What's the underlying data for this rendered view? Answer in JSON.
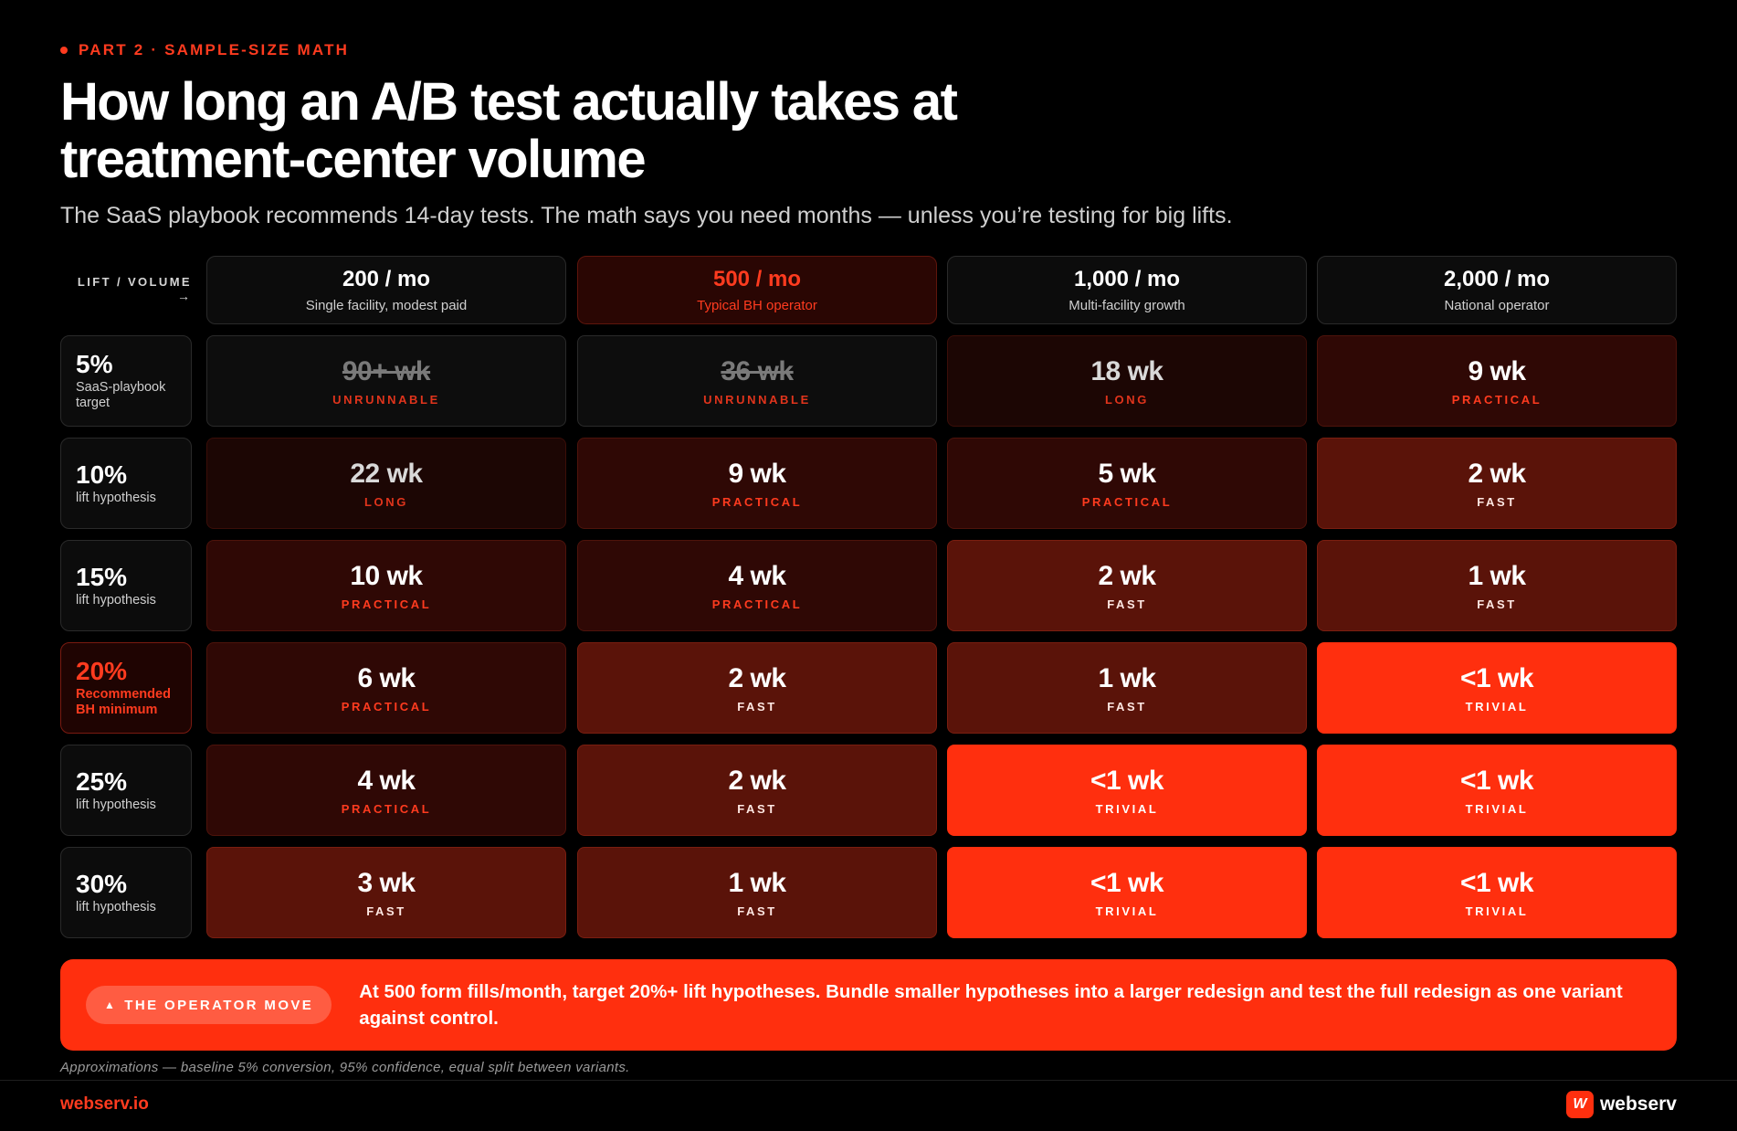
{
  "eyebrow": "PART 2 · SAMPLE-SIZE MATH",
  "title": "How long an A/B test actually takes at treatment-center volume",
  "subtitle": "The SaaS playbook recommends 14-day tests. The math says you need months — unless you’re testing for big lifts.",
  "corner_label": "LIFT / VOLUME",
  "corner_arrow": "→",
  "chart_data": {
    "type": "table",
    "columns": [
      {
        "volume": "200 / mo",
        "desc": "Single facility, modest paid",
        "highlight": false
      },
      {
        "volume": "500 / mo",
        "desc": "Typical BH operator",
        "highlight": true
      },
      {
        "volume": "1,000 / mo",
        "desc": "Multi-facility growth",
        "highlight": false
      },
      {
        "volume": "2,000 / mo",
        "desc": "National operator",
        "highlight": false
      }
    ],
    "rows": [
      {
        "lift": "5%",
        "desc": "SaaS-playbook target",
        "highlight": false,
        "cells": [
          {
            "value": "90+ wk",
            "label": "UNRUNNABLE"
          },
          {
            "value": "36 wk",
            "label": "UNRUNNABLE"
          },
          {
            "value": "18 wk",
            "label": "LONG"
          },
          {
            "value": "9 wk",
            "label": "PRACTICAL"
          }
        ]
      },
      {
        "lift": "10%",
        "desc": "lift hypothesis",
        "highlight": false,
        "cells": [
          {
            "value": "22 wk",
            "label": "LONG"
          },
          {
            "value": "9 wk",
            "label": "PRACTICAL"
          },
          {
            "value": "5 wk",
            "label": "PRACTICAL"
          },
          {
            "value": "2 wk",
            "label": "FAST"
          }
        ]
      },
      {
        "lift": "15%",
        "desc": "lift hypothesis",
        "highlight": false,
        "cells": [
          {
            "value": "10 wk",
            "label": "PRACTICAL"
          },
          {
            "value": "4 wk",
            "label": "PRACTICAL"
          },
          {
            "value": "2 wk",
            "label": "FAST"
          },
          {
            "value": "1 wk",
            "label": "FAST"
          }
        ]
      },
      {
        "lift": "20%",
        "desc": "Recommended BH minimum",
        "highlight": true,
        "cells": [
          {
            "value": "6 wk",
            "label": "PRACTICAL"
          },
          {
            "value": "2 wk",
            "label": "FAST"
          },
          {
            "value": "1 wk",
            "label": "FAST"
          },
          {
            "value": "<1 wk",
            "label": "TRIVIAL"
          }
        ]
      },
      {
        "lift": "25%",
        "desc": "lift hypothesis",
        "highlight": false,
        "cells": [
          {
            "value": "4 wk",
            "label": "PRACTICAL"
          },
          {
            "value": "2 wk",
            "label": "FAST"
          },
          {
            "value": "<1 wk",
            "label": "TRIVIAL"
          },
          {
            "value": "<1 wk",
            "label": "TRIVIAL"
          }
        ]
      },
      {
        "lift": "30%",
        "desc": "lift hypothesis",
        "highlight": false,
        "cells": [
          {
            "value": "3 wk",
            "label": "FAST"
          },
          {
            "value": "1 wk",
            "label": "FAST"
          },
          {
            "value": "<1 wk",
            "label": "TRIVIAL"
          },
          {
            "value": "<1 wk",
            "label": "TRIVIAL"
          }
        ]
      }
    ]
  },
  "banner": {
    "pill_label": "THE OPERATOR MOVE",
    "pill_icon": "▲",
    "text": "At 500 form fills/month, target 20%+ lift hypotheses. Bundle smaller hypotheses into a larger redesign and test the full redesign as one variant against control."
  },
  "footnote": "Approximations — baseline 5% conversion, 95% confidence, equal split between variants.",
  "footer": {
    "site": "webserv.io",
    "brand": "webserv",
    "logo_glyph": "W"
  },
  "colors": {
    "accent": "#ff2f0e",
    "background": "#000000"
  }
}
